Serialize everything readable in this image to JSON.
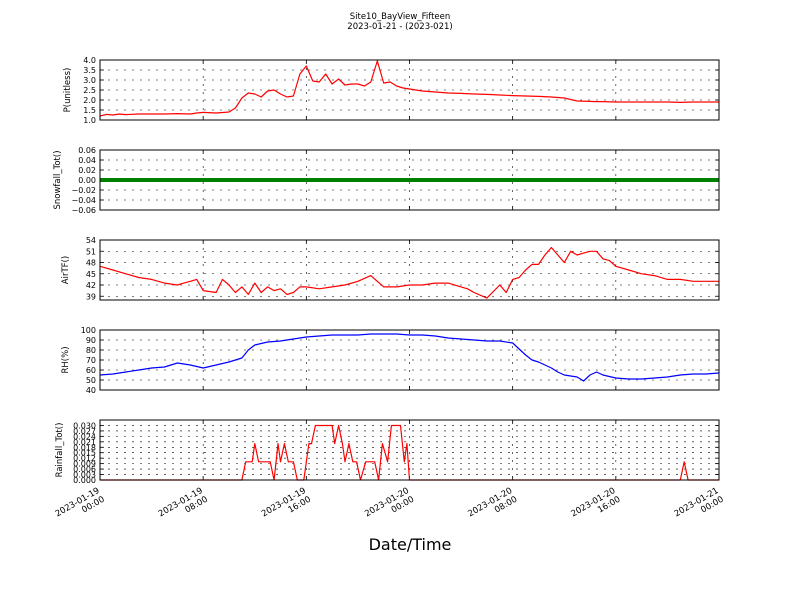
{
  "figure": {
    "title_line1": "Site10_BayView_Fifteen",
    "title_line2": "2023-01-21 - (2023-021)",
    "xlabel": "Date/Time"
  },
  "chart_data": [
    {
      "type": "line",
      "ylabel": "P(unitless)",
      "ylim": [
        1.0,
        4.0
      ],
      "yticks": [
        1.0,
        1.5,
        2.0,
        2.5,
        3.0,
        3.5,
        4.0
      ],
      "ytick_labels": [
        "1.0",
        "1.5",
        "2.0",
        "2.5",
        "3.0",
        "3.5",
        "4.0"
      ],
      "xlim_hours": [
        0,
        48
      ],
      "xtick_labels": [
        [
          "2023-01-19",
          "00:00"
        ],
        [
          "2023-01-19",
          "08:00"
        ],
        [
          "2023-01-19",
          "16:00"
        ],
        [
          "2023-01-20",
          "00:00"
        ],
        [
          "2023-01-20",
          "08:00"
        ],
        [
          "2023-01-20",
          "16:00"
        ],
        [
          "2023-01-21",
          "00:00"
        ]
      ],
      "grid": true,
      "color": "#ff0000",
      "series": [
        {
          "x": [
            0,
            0.5,
            1,
            1.5,
            2,
            3,
            4,
            5,
            6,
            7,
            7.5,
            8,
            9,
            10,
            10.5,
            11,
            11.5,
            12,
            12.5,
            13,
            13.5,
            14,
            14.5,
            15,
            15.5,
            16,
            16.5,
            17,
            17.5,
            18,
            18.5,
            19,
            19.5,
            20,
            20.5,
            21,
            21.5,
            22,
            22.5,
            23,
            23.5,
            24,
            24.5,
            25,
            26,
            27,
            28,
            29,
            30,
            31,
            32,
            33,
            34,
            35,
            36,
            37,
            38,
            38.5,
            39,
            40,
            41,
            42,
            43,
            44,
            45,
            46,
            47,
            48
          ],
          "y": [
            1.2,
            1.28,
            1.25,
            1.3,
            1.27,
            1.3,
            1.3,
            1.3,
            1.32,
            1.3,
            1.35,
            1.38,
            1.35,
            1.4,
            1.6,
            2.1,
            2.35,
            2.3,
            2.15,
            2.45,
            2.5,
            2.3,
            2.15,
            2.2,
            3.3,
            3.7,
            2.95,
            2.9,
            3.3,
            2.8,
            3.05,
            2.75,
            2.8,
            2.8,
            2.7,
            2.9,
            3.95,
            2.85,
            2.9,
            2.7,
            2.6,
            2.55,
            2.5,
            2.45,
            2.4,
            2.35,
            2.33,
            2.3,
            2.28,
            2.25,
            2.22,
            2.2,
            2.18,
            2.15,
            2.1,
            1.95,
            1.93,
            1.92,
            1.92,
            1.9,
            1.9,
            1.9,
            1.9,
            1.9,
            1.88,
            1.9,
            1.9,
            1.9
          ]
        }
      ]
    },
    {
      "type": "line",
      "ylabel": "Snowfall_Tot()",
      "ylim": [
        -0.06,
        0.06
      ],
      "yticks": [
        -0.06,
        -0.04,
        -0.02,
        0.0,
        0.02,
        0.04,
        0.06
      ],
      "ytick_labels": [
        "−0.06",
        "−0.04",
        "−0.02",
        "0.00",
        "0.02",
        "0.04",
        "0.06"
      ],
      "xlim_hours": [
        0,
        48
      ],
      "grid": true,
      "color": "#008000",
      "series": [
        {
          "x": [
            0,
            48
          ],
          "y": [
            0.0,
            0.0
          ]
        }
      ]
    },
    {
      "type": "line",
      "ylabel": "AirTF()",
      "ylim": [
        38,
        54
      ],
      "yticks": [
        39,
        42,
        45,
        48,
        51,
        54
      ],
      "ytick_labels": [
        "39",
        "42",
        "45",
        "48",
        "51",
        "54"
      ],
      "xlim_hours": [
        0,
        48
      ],
      "grid": true,
      "color": "#ff0000",
      "series": [
        {
          "x": [
            0,
            1,
            2,
            3,
            4,
            5,
            6,
            6.5,
            7,
            7.5,
            8,
            9,
            9.5,
            10,
            10.5,
            11,
            11.5,
            12,
            12.5,
            13,
            13.5,
            14,
            14.5,
            15,
            15.5,
            16,
            17,
            18,
            19,
            20,
            21,
            22,
            22.5,
            23,
            24,
            25,
            26,
            27,
            28,
            28.5,
            29,
            30,
            31,
            31.5,
            32,
            32.5,
            33,
            33.5,
            34,
            34.5,
            35,
            35.5,
            36,
            36.5,
            37,
            37.5,
            38,
            38.5,
            39,
            39.5,
            40,
            41,
            42,
            43,
            44,
            45,
            46,
            47,
            48
          ],
          "y": [
            47,
            46,
            45,
            44,
            43.5,
            42.5,
            42,
            42.5,
            43,
            43.5,
            40.5,
            40,
            43.5,
            42,
            40,
            41.5,
            39.5,
            42.5,
            40,
            41.5,
            40.5,
            41,
            39.5,
            40,
            41.5,
            41.5,
            41,
            41.5,
            42,
            43,
            44.5,
            41.5,
            41.5,
            41.5,
            42,
            42,
            42.5,
            42.5,
            41.5,
            41,
            40,
            38.5,
            42,
            40,
            43.5,
            44,
            46,
            47.5,
            47.5,
            50,
            52,
            50,
            48,
            51,
            50,
            50.5,
            51,
            51,
            49,
            48.5,
            47,
            46,
            45,
            44.5,
            43.5,
            43.5,
            43,
            43,
            43
          ]
        }
      ]
    },
    {
      "type": "line",
      "ylabel": "RH(%)",
      "ylim": [
        40,
        100
      ],
      "yticks": [
        40,
        50,
        60,
        70,
        80,
        90,
        100
      ],
      "ytick_labels": [
        "40",
        "50",
        "60",
        "70",
        "80",
        "90",
        "100"
      ],
      "xlim_hours": [
        0,
        48
      ],
      "grid": true,
      "color": "#0000ff",
      "series": [
        {
          "x": [
            0,
            1,
            2,
            3,
            4,
            5,
            6,
            7,
            8,
            9,
            10,
            11,
            11.5,
            12,
            13,
            14,
            15,
            16,
            17,
            18,
            19,
            20,
            21,
            22,
            23,
            24,
            25,
            26,
            27,
            28,
            29,
            30,
            31,
            32,
            33,
            33.5,
            34,
            35,
            35.5,
            36,
            37,
            37.5,
            38,
            38.5,
            39,
            40,
            41,
            42,
            43,
            44,
            45,
            46,
            47,
            48
          ],
          "y": [
            55,
            56,
            58,
            60,
            62,
            63,
            67,
            65,
            62,
            65,
            68,
            72,
            80,
            85,
            88,
            89,
            91,
            93,
            94,
            95,
            95,
            95,
            96,
            96,
            96,
            95,
            95,
            94,
            92,
            91,
            90,
            89,
            89,
            87,
            75,
            70,
            68,
            62,
            58,
            55,
            53,
            49,
            55,
            58,
            55,
            52,
            51,
            51,
            52,
            53,
            55,
            56,
            56,
            57
          ]
        }
      ]
    },
    {
      "type": "line",
      "ylabel": "Rainfall_Tot()",
      "ylim": [
        0.0,
        0.033
      ],
      "yticks": [
        0.0,
        0.003,
        0.006,
        0.009,
        0.012,
        0.015,
        0.018,
        0.021,
        0.024,
        0.027,
        0.03
      ],
      "ytick_labels": [
        "0.000",
        "0.003",
        "0.006",
        "0.009",
        "0.012",
        "0.015",
        "0.018",
        "0.021",
        "0.024",
        "0.027",
        "0.030"
      ],
      "xlim_hours": [
        0,
        48
      ],
      "grid": true,
      "color": "#ff0000",
      "series": [
        {
          "x": [
            0,
            11,
            11.3,
            11.8,
            12,
            12.3,
            12.6,
            13.2,
            13.5,
            13.8,
            14,
            14.3,
            14.6,
            15,
            15.3,
            15.8,
            16.2,
            16.4,
            16.7,
            17,
            17.5,
            18,
            18.2,
            18.5,
            18.8,
            19,
            19.3,
            19.6,
            19.9,
            20.2,
            20.6,
            21,
            21.3,
            21.6,
            21.9,
            22.3,
            22.6,
            23,
            23.3,
            23.6,
            23.8,
            24,
            24.3,
            24.6,
            25,
            45,
            45.3,
            45.6,
            48
          ],
          "y": [
            0,
            0,
            0.01,
            0.01,
            0.02,
            0.01,
            0.01,
            0.01,
            0.0,
            0.02,
            0.01,
            0.02,
            0.01,
            0.01,
            0.0,
            0.0,
            0.02,
            0.02,
            0.03,
            0.03,
            0.03,
            0.03,
            0.02,
            0.03,
            0.02,
            0.01,
            0.02,
            0.01,
            0.01,
            0.0,
            0.01,
            0.01,
            0.01,
            0.0,
            0.02,
            0.01,
            0.03,
            0.03,
            0.03,
            0.01,
            0.02,
            0.0,
            0.0,
            0.0,
            0,
            0,
            0.01,
            0.0,
            0.0
          ]
        }
      ]
    }
  ]
}
